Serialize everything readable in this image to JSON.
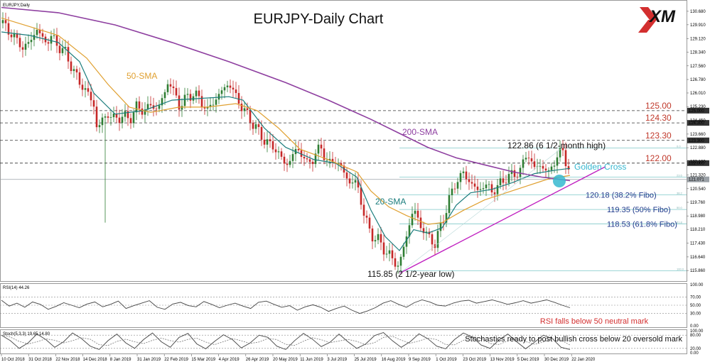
{
  "chart_data": {
    "type": "line",
    "title": "EURJPY-Daily Chart",
    "symbol_label": "EURJPY,Daily",
    "brand": "XM",
    "colors": {
      "up_candle": "#2e7d32",
      "down_candle": "#c62828",
      "sma20": "#1a7c7c",
      "sma50": "#e0a030",
      "sma200": "#8e3fa0",
      "trendline": "#c020c0",
      "level_text": "#c0392b",
      "fibo_text": "#1f3a8c",
      "golden_cross": "#36b8d0"
    },
    "x_ticks": [
      "10 Oct 2018",
      "31 Oct 2018",
      "22 Nov 2018",
      "14 Dec 2018",
      "8 Jan 2019",
      "31 Jan 2019",
      "22 Feb 2019",
      "15 Mar 2019",
      "4 Apr 2019",
      "26 Apr 2019",
      "20 May 2019",
      "11 Jun 2019",
      "3 Jul 2019",
      "25 Jul 2019",
      "16 Aug 2019",
      "9 Sep 2019",
      "1 Oct 2019",
      "23 Oct 2019",
      "13 Nov 2019",
      "5 Dec 2019",
      "30 Dec 2019",
      "22 Jan 2020"
    ],
    "y_ticks": [
      "130.680",
      "129.910",
      "129.120",
      "128.340",
      "127.560",
      "126.780",
      "126.010",
      "125.230",
      "124.450",
      "123.660",
      "122.880",
      "122.100",
      "121.320",
      "120.540",
      "119.760",
      "118.980",
      "118.210",
      "117.430",
      "116.640",
      "115.860"
    ],
    "ylim": [
      115.5,
      131.0
    ],
    "grid": false,
    "price_path": [
      [
        0,
        130.0
      ],
      [
        10,
        129.6
      ],
      [
        20,
        129.1
      ],
      [
        30,
        128.6
      ],
      [
        40,
        128.9
      ],
      [
        50,
        129.7
      ],
      [
        60,
        128.9
      ],
      [
        70,
        129.2
      ],
      [
        80,
        128.7
      ],
      [
        90,
        128.3
      ],
      [
        100,
        127.4
      ],
      [
        110,
        126.6
      ],
      [
        120,
        126.1
      ],
      [
        130,
        125.3
      ],
      [
        135,
        123.8
      ],
      [
        140,
        124.4
      ],
      [
        150,
        124.8
      ],
      [
        160,
        124.5
      ],
      [
        170,
        124.7
      ],
      [
        180,
        124.5
      ],
      [
        190,
        125.2
      ],
      [
        200,
        125.0
      ],
      [
        210,
        125.3
      ],
      [
        220,
        125.1
      ],
      [
        230,
        126.0
      ],
      [
        235,
        126.8
      ],
      [
        240,
        126.3
      ],
      [
        250,
        125.3
      ],
      [
        260,
        125.7
      ],
      [
        270,
        126.0
      ],
      [
        280,
        125.6
      ],
      [
        290,
        125.0
      ],
      [
        300,
        125.6
      ],
      [
        310,
        126.1
      ],
      [
        320,
        126.6
      ],
      [
        330,
        125.8
      ],
      [
        340,
        125.1
      ],
      [
        350,
        124.5
      ],
      [
        360,
        123.9
      ],
      [
        370,
        123.3
      ],
      [
        380,
        123.0
      ],
      [
        390,
        122.6
      ],
      [
        400,
        121.8
      ],
      [
        410,
        122.5
      ],
      [
        420,
        122.8
      ],
      [
        430,
        121.9
      ],
      [
        440,
        122.4
      ],
      [
        450,
        122.9
      ],
      [
        460,
        121.9
      ],
      [
        470,
        122.2
      ],
      [
        480,
        121.6
      ],
      [
        490,
        120.9
      ],
      [
        500,
        120.9
      ],
      [
        510,
        119.1
      ],
      [
        520,
        117.9
      ],
      [
        530,
        117.6
      ],
      [
        540,
        117.0
      ],
      [
        550,
        116.5
      ],
      [
        560,
        116.1
      ],
      [
        570,
        117.9
      ],
      [
        580,
        119.4
      ],
      [
        590,
        118.4
      ],
      [
        600,
        117.8
      ],
      [
        610,
        117.4
      ],
      [
        620,
        118.6
      ],
      [
        630,
        119.9
      ],
      [
        640,
        121.0
      ],
      [
        650,
        121.4
      ],
      [
        660,
        120.9
      ],
      [
        670,
        120.4
      ],
      [
        680,
        120.8
      ],
      [
        690,
        120.4
      ],
      [
        700,
        120.7
      ],
      [
        710,
        121.2
      ],
      [
        720,
        121.3
      ],
      [
        730,
        121.6
      ],
      [
        740,
        122.6
      ],
      [
        750,
        121.7
      ],
      [
        760,
        121.9
      ],
      [
        770,
        121.4
      ],
      [
        780,
        122.3
      ],
      [
        790,
        122.7
      ],
      [
        800,
        121.4
      ]
    ],
    "series": [
      {
        "name": "20-SMA",
        "values": [
          [
            0,
            129.5
          ],
          [
            40,
            129.3
          ],
          [
            80,
            128.9
          ],
          [
            110,
            127.8
          ],
          [
            130,
            126.0
          ],
          [
            160,
            124.8
          ],
          [
            200,
            125.0
          ],
          [
            240,
            125.6
          ],
          [
            280,
            125.7
          ],
          [
            320,
            125.8
          ],
          [
            340,
            125.6
          ],
          [
            370,
            124.0
          ],
          [
            400,
            122.9
          ],
          [
            440,
            122.2
          ],
          [
            470,
            122.0
          ],
          [
            500,
            121.2
          ],
          [
            520,
            119.3
          ],
          [
            540,
            117.8
          ],
          [
            560,
            117.0
          ],
          [
            580,
            118.2
          ],
          [
            600,
            118.0
          ],
          [
            620,
            118.3
          ],
          [
            640,
            119.6
          ],
          [
            660,
            120.3
          ],
          [
            690,
            120.5
          ],
          [
            720,
            120.9
          ],
          [
            750,
            121.4
          ],
          [
            780,
            121.6
          ],
          [
            800,
            121.7
          ]
        ]
      },
      {
        "name": "50-SMA",
        "values": [
          [
            0,
            130.3
          ],
          [
            40,
            129.8
          ],
          [
            80,
            129.3
          ],
          [
            120,
            128.0
          ],
          [
            150,
            126.5
          ],
          [
            180,
            125.2
          ],
          [
            210,
            124.9
          ],
          [
            250,
            125.2
          ],
          [
            290,
            125.2
          ],
          [
            330,
            125.4
          ],
          [
            360,
            125.0
          ],
          [
            390,
            124.0
          ],
          [
            420,
            122.8
          ],
          [
            460,
            122.2
          ],
          [
            500,
            121.5
          ],
          [
            520,
            120.4
          ],
          [
            545,
            119.5
          ],
          [
            570,
            119.0
          ],
          [
            600,
            118.5
          ],
          [
            620,
            118.6
          ],
          [
            650,
            119.3
          ],
          [
            680,
            119.9
          ],
          [
            710,
            120.3
          ],
          [
            740,
            120.7
          ],
          [
            770,
            121.1
          ],
          [
            800,
            121.3
          ]
        ]
      },
      {
        "name": "200-SMA",
        "values": [
          [
            0,
            130.9
          ],
          [
            80,
            130.6
          ],
          [
            160,
            129.9
          ],
          [
            240,
            128.9
          ],
          [
            320,
            127.8
          ],
          [
            400,
            126.6
          ],
          [
            460,
            125.6
          ],
          [
            520,
            124.5
          ],
          [
            560,
            123.7
          ],
          [
            600,
            122.9
          ],
          [
            640,
            122.3
          ],
          [
            680,
            121.9
          ],
          [
            720,
            121.5
          ],
          [
            760,
            121.2
          ],
          [
            800,
            121.0
          ]
        ]
      }
    ],
    "trendline": [
      [
        560,
        115.7
      ],
      [
        850,
        121.8
      ]
    ],
    "annotations": {
      "sma50_label": "50-SMA",
      "sma200_label": "200-SMA",
      "sma20_label": "20-SMA",
      "golden_cross": "Golden Cross",
      "high_label": "122.86 (6 1/2-month high)",
      "low_label": "115.85 (2 1/2-year low)"
    },
    "levels": [
      {
        "value": 125.0,
        "label": "125.00"
      },
      {
        "value": 124.3,
        "label": "124.30"
      },
      {
        "value": 123.3,
        "label": "123.30"
      },
      {
        "value": 122.0,
        "label": "122.00"
      }
    ],
    "fibo": [
      {
        "value": 120.18,
        "label": "120.18 (38.2% Fibo)"
      },
      {
        "value": 119.35,
        "label": "119.35 (50% Fibo)"
      },
      {
        "value": 118.53,
        "label": "118.53 (61.8% Fibo)"
      }
    ],
    "fibo_small_labels": [
      "0.0",
      "23.6",
      "38.2",
      "50.0",
      "61.8",
      "100.0"
    ],
    "current_price_tag": "121.071",
    "level_tags": [
      "125.000",
      "124.300",
      "123.300",
      "122.000"
    ],
    "rsi": {
      "label": "RSI(14) 44.26",
      "ticks": [
        "100.00",
        "70.00",
        "50.00",
        "30.00",
        "0.00"
      ],
      "annotation": "RSI falls below 50 neutral mark",
      "values": [
        62,
        48,
        55,
        45,
        58,
        52,
        40,
        47,
        56,
        50,
        44,
        53,
        58,
        46,
        52,
        60,
        42,
        49,
        55,
        61,
        45,
        40,
        53,
        57,
        49,
        46,
        59,
        52,
        44,
        50,
        55,
        48,
        42,
        57,
        60,
        52,
        45,
        49,
        38,
        46,
        51,
        45,
        35,
        42,
        48,
        38,
        30,
        36,
        44,
        55,
        61,
        52,
        45,
        56,
        63,
        58,
        50,
        48,
        55,
        60,
        62,
        55,
        59,
        63,
        58,
        52,
        56,
        61,
        55,
        59,
        63,
        57,
        50,
        44
      ]
    },
    "stoch": {
      "label": "Stoch(5,3,3) 19.65 14.80",
      "ticks": [
        "100.00",
        "80.00",
        "20.00",
        "0.00"
      ],
      "annotation": "Stochastics ready to post bullish cross below 20 oversold mark",
      "values": [
        80,
        55,
        20,
        45,
        85,
        60,
        25,
        50,
        90,
        65,
        30,
        15,
        55,
        85,
        45,
        20,
        60,
        90,
        50,
        25,
        70,
        88,
        40,
        18,
        52,
        82,
        60,
        22,
        45,
        80,
        70,
        30,
        15,
        55,
        88,
        62,
        28,
        48,
        85,
        50,
        20,
        40,
        78,
        92,
        55,
        25,
        50,
        86,
        64,
        30,
        18,
        60,
        90,
        72,
        35,
        20,
        58,
        85,
        50,
        18,
        48,
        80,
        65,
        25,
        15
      ]
    }
  }
}
